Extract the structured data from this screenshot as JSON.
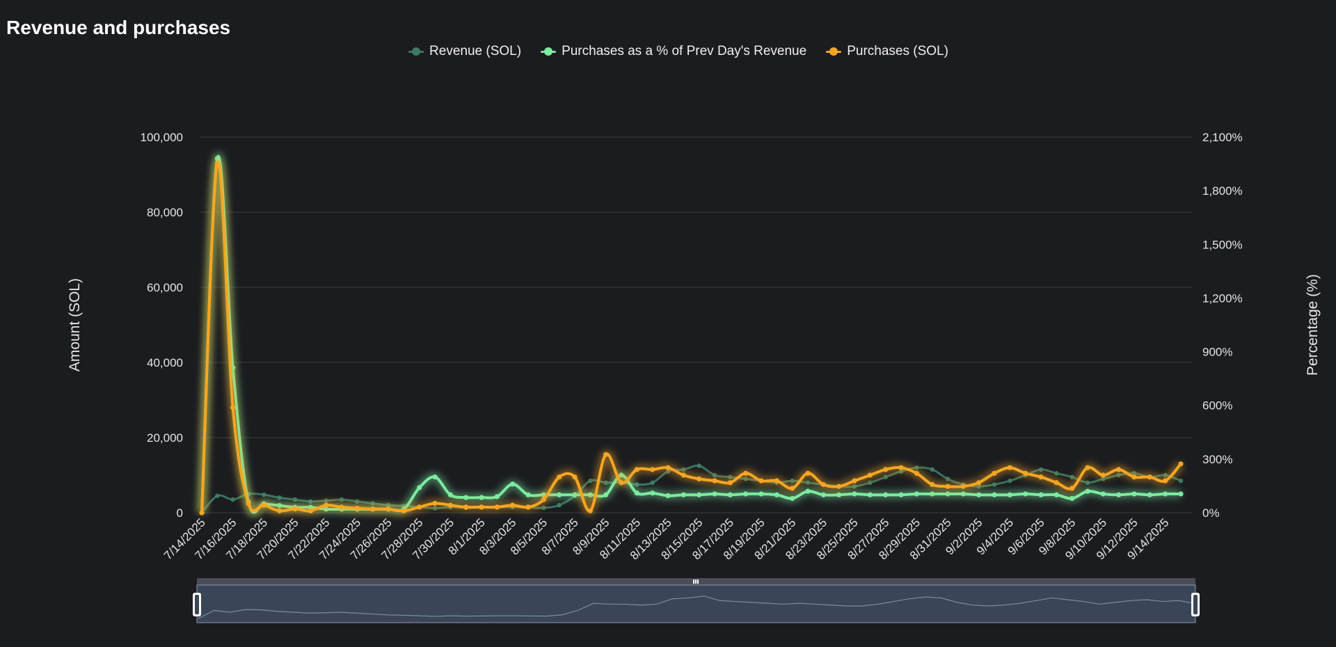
{
  "title": "Revenue and purchases",
  "colors": {
    "revenue": "#3e7a63",
    "percent": "#7ceba0",
    "purchases": "#f5a623",
    "grid": "#3a3b40",
    "zoom_fill": "#3a4558",
    "zoom_line": "#7d8aa3"
  },
  "chart_data": {
    "type": "line",
    "title": "Revenue and purchases",
    "ylabel": "Amount (SOL)",
    "ylabel_right": "Percentage (%)",
    "ylim": [
      0,
      100000
    ],
    "ylim_right": [
      0,
      2100
    ],
    "yticks": [
      "0",
      "20,000",
      "40,000",
      "60,000",
      "80,000",
      "100,000"
    ],
    "yticks_right": [
      "0%",
      "300%",
      "600%",
      "900%",
      "1,200%",
      "1,500%",
      "1,800%",
      "2,100%"
    ],
    "legend": "top-center",
    "grid": true,
    "x": [
      "7/14/2025",
      "7/15/2025",
      "7/16/2025",
      "7/17/2025",
      "7/18/2025",
      "7/19/2025",
      "7/20/2025",
      "7/21/2025",
      "7/22/2025",
      "7/23/2025",
      "7/24/2025",
      "7/25/2025",
      "7/26/2025",
      "7/27/2025",
      "7/28/2025",
      "7/29/2025",
      "7/30/2025",
      "7/31/2025",
      "8/1/2025",
      "8/2/2025",
      "8/3/2025",
      "8/4/2025",
      "8/5/2025",
      "8/6/2025",
      "8/7/2025",
      "8/8/2025",
      "8/9/2025",
      "8/10/2025",
      "8/11/2025",
      "8/12/2025",
      "8/13/2025",
      "8/14/2025",
      "8/15/2025",
      "8/16/2025",
      "8/17/2025",
      "8/18/2025",
      "8/19/2025",
      "8/20/2025",
      "8/21/2025",
      "8/22/2025",
      "8/23/2025",
      "8/24/2025",
      "8/25/2025",
      "8/26/2025",
      "8/27/2025",
      "8/28/2025",
      "8/29/2025",
      "8/30/2025",
      "8/31/2025",
      "9/1/2025",
      "9/2/2025",
      "9/3/2025",
      "9/4/2025",
      "9/5/2025",
      "9/6/2025",
      "9/7/2025",
      "9/8/2025",
      "9/9/2025",
      "9/10/2025",
      "9/11/2025",
      "9/12/2025",
      "9/13/2025",
      "9/14/2025",
      "9/15/2025"
    ],
    "xtick_labels": [
      "7/14/2025",
      "7/16/2025",
      "7/18/2025",
      "7/20/2025",
      "7/22/2025",
      "7/24/2025",
      "7/26/2025",
      "7/28/2025",
      "7/30/2025",
      "8/1/2025",
      "8/3/2025",
      "8/5/2025",
      "8/7/2025",
      "8/9/2025",
      "8/11/2025",
      "8/13/2025",
      "8/15/2025",
      "8/17/2025",
      "8/19/2025",
      "8/21/2025",
      "8/23/2025",
      "8/25/2025",
      "8/27/2025",
      "8/29/2025",
      "8/31/2025",
      "9/2/2025",
      "9/4/2025",
      "9/6/2025",
      "9/8/2025",
      "9/10/2025",
      "9/12/2025",
      "9/14/2025"
    ],
    "series": [
      {
        "name": "Revenue (SOL)",
        "axis": "left",
        "values": [
          0,
          4500,
          3500,
          5000,
          4800,
          4000,
          3500,
          3000,
          3200,
          3500,
          3000,
          2500,
          2000,
          1800,
          1500,
          1200,
          1500,
          1300,
          1400,
          1500,
          1500,
          1400,
          1300,
          2000,
          4500,
          8500,
          8000,
          8000,
          7500,
          8000,
          11000,
          11500,
          12500,
          10000,
          9500,
          9000,
          8500,
          8000,
          8500,
          8000,
          7500,
          7000,
          7000,
          8000,
          9500,
          11000,
          12000,
          11500,
          9000,
          7500,
          7000,
          7500,
          8500,
          10000,
          11500,
          10500,
          9500,
          8000,
          9000,
          10000,
          10500,
          9500,
          10000,
          8500
        ]
      },
      {
        "name": "Purchases as a % of Prev Day's Revenue",
        "axis": "right",
        "values": [
          0,
          1980,
          810,
          60,
          50,
          40,
          30,
          30,
          20,
          20,
          20,
          20,
          20,
          20,
          140,
          200,
          100,
          85,
          85,
          90,
          160,
          100,
          100,
          100,
          100,
          100,
          100,
          210,
          110,
          110,
          95,
          100,
          100,
          105,
          100,
          105,
          105,
          100,
          80,
          120,
          100,
          100,
          105,
          100,
          100,
          100,
          105,
          105,
          105,
          105,
          100,
          100,
          100,
          105,
          100,
          100,
          80,
          120,
          105,
          100,
          105,
          100,
          105,
          105
        ]
      },
      {
        "name": "Purchases (SOL)",
        "axis": "left",
        "values": [
          0,
          93000,
          28000,
          2500,
          2000,
          500,
          1000,
          500,
          2000,
          1500,
          1200,
          1000,
          1000,
          500,
          1500,
          2500,
          2000,
          1500,
          1500,
          1500,
          2000,
          1500,
          3500,
          9500,
          9500,
          500,
          15500,
          8000,
          11500,
          11500,
          12000,
          10000,
          9000,
          8500,
          8000,
          10500,
          8500,
          8500,
          6500,
          10500,
          7500,
          7000,
          8500,
          10000,
          11500,
          12000,
          10500,
          7500,
          7000,
          7000,
          8000,
          10500,
          12000,
          10500,
          9500,
          8000,
          6500,
          12000,
          10000,
          11500,
          9500,
          9500,
          8500,
          13000
        ]
      }
    ]
  },
  "icons": {
    "zoom_handle_left": "zoom-handle-left-icon",
    "zoom_handle_right": "zoom-handle-right-icon",
    "zoom_grip": "grip-icon"
  }
}
